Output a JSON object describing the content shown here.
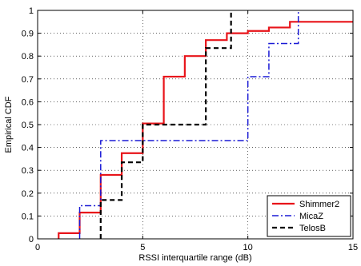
{
  "chart_data": {
    "type": "line",
    "subtype": "empirical-cdf-step",
    "title": "",
    "xlabel": "RSSI interquartile range (dB)",
    "ylabel": "Empirical CDF",
    "xlim": [
      0,
      15
    ],
    "ylim": [
      0,
      1
    ],
    "xticks": [
      "0",
      "5",
      "10",
      "15"
    ],
    "yticks": [
      "0",
      "0.1",
      "0.2",
      "0.3",
      "0.4",
      "0.5",
      "0.6",
      "0.7",
      "0.8",
      "0.9",
      "1"
    ],
    "grid": true,
    "legend_position": "bottom-right",
    "series": [
      {
        "name": "Shimmer2",
        "color": "#e8141a",
        "style": "solid",
        "x": [
          1,
          2,
          3,
          4,
          5,
          6,
          7,
          8,
          9,
          10,
          11,
          12,
          15
        ],
        "y": [
          0.025,
          0.115,
          0.28,
          0.375,
          0.505,
          0.71,
          0.8,
          0.87,
          0.9,
          0.91,
          0.925,
          0.95,
          0.95
        ]
      },
      {
        "name": "MicaZ",
        "color": "#1a1ad6",
        "style": "dashdot",
        "x": [
          2,
          3,
          10,
          11,
          12,
          12.4
        ],
        "y": [
          0.145,
          0.43,
          0.71,
          0.855,
          0.855,
          1.0
        ]
      },
      {
        "name": "TelosB",
        "color": "#000000",
        "style": "dashed",
        "x": [
          3,
          4,
          5,
          8,
          9,
          9.2
        ],
        "y": [
          0.17,
          0.335,
          0.5,
          0.835,
          0.835,
          1.0
        ]
      }
    ]
  }
}
